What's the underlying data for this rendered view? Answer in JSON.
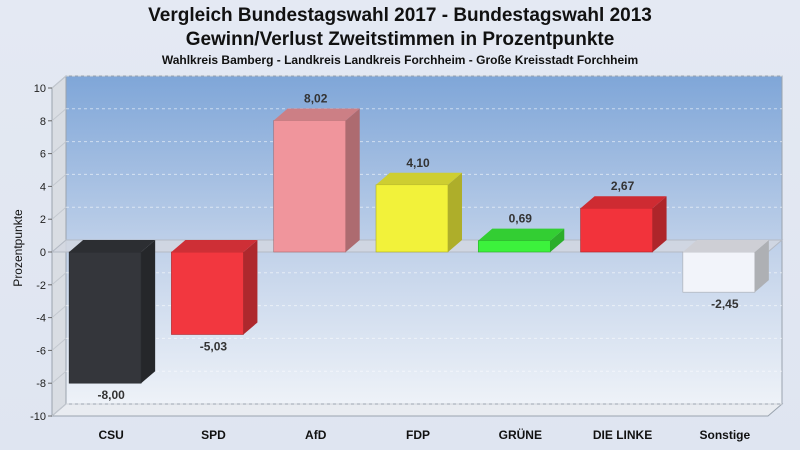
{
  "chart_data": {
    "type": "bar",
    "title": "Vergleich Bundestagswahl 2017 - Bundestagswahl 2013",
    "subtitle": "Gewinn/Verlust Zweitstimmen in Prozentpunkte",
    "region": "Wahlkreis Bamberg - Landkreis Landkreis Forchheim - Große Kreisstadt Forchheim",
    "ylabel": "Prozentpunkte",
    "ylim": [
      -10,
      10
    ],
    "yticks": [
      10,
      8,
      6,
      4,
      2,
      0,
      -2,
      -4,
      -6,
      -8,
      -10
    ],
    "grid": true,
    "categories": [
      "CSU",
      "SPD",
      "AfD",
      "FDP",
      "GRÜNE",
      "DIE LINKE",
      "Sonstige"
    ],
    "values": [
      -8.0,
      -5.03,
      8.02,
      4.1,
      0.69,
      2.67,
      -2.45
    ],
    "value_labels": [
      "-8,00",
      "-5,03",
      "8,02",
      "4,10",
      "0,69",
      "2,67",
      "-2,45"
    ],
    "colors": [
      "#34363b",
      "#f2373f",
      "#f0959c",
      "#f2f23a",
      "#3cf23c",
      "#f2333b",
      "#f2f4fa"
    ]
  }
}
